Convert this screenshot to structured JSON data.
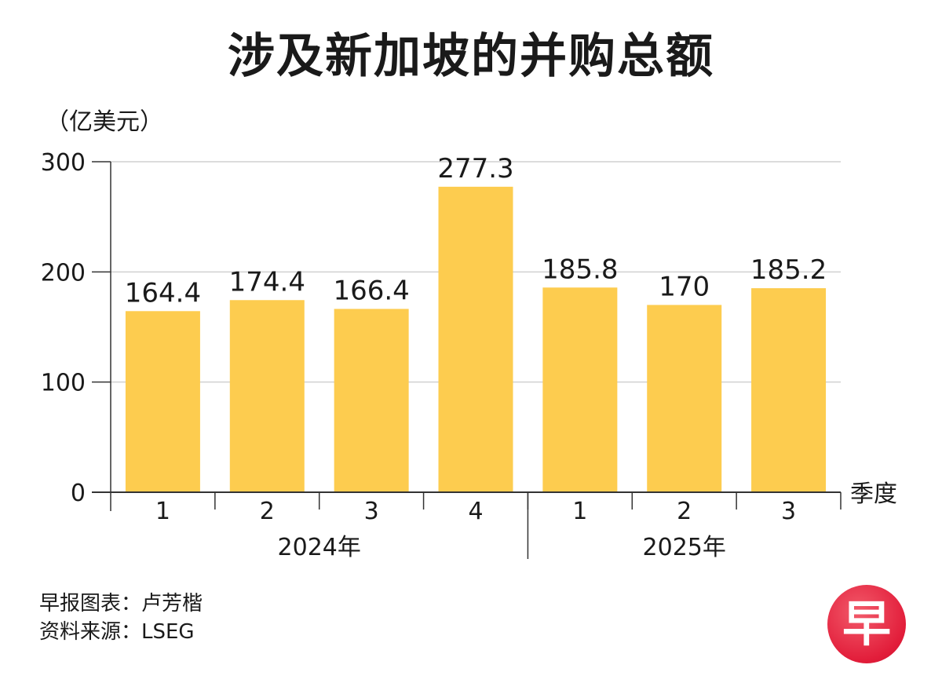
{
  "title": "涉及新加坡的并购总额",
  "unit_label": "（亿美元）",
  "x_axis_label": "季度",
  "footer": {
    "credit": "早报图表：卢芳楷",
    "source": "资料来源：LSEG"
  },
  "logo_text": "早",
  "colors": {
    "bar": "#FDCC4F",
    "grid": "#d0d0d0",
    "axis": "#333333",
    "logo": "#E21D3A"
  },
  "chart_data": {
    "type": "bar",
    "categories": [
      "1",
      "2",
      "3",
      "4",
      "1",
      "2",
      "3"
    ],
    "groups": [
      {
        "label": "2024年",
        "categories": [
          "1",
          "2",
          "3",
          "4"
        ]
      },
      {
        "label": "2025年",
        "categories": [
          "1",
          "2",
          "3"
        ]
      }
    ],
    "values": [
      164.4,
      174.4,
      166.4,
      277.3,
      185.8,
      170,
      185.2
    ],
    "value_labels": [
      "164.4",
      "174.4",
      "166.4",
      "277.3",
      "185.8",
      "170",
      "185.2"
    ],
    "title": "涉及新加坡的并购总额",
    "xlabel": "季度",
    "ylabel": "（亿美元）",
    "ylim": [
      0,
      300
    ],
    "yticks": [
      "0",
      "100",
      "200",
      "300"
    ],
    "grid": true,
    "legend": false
  }
}
